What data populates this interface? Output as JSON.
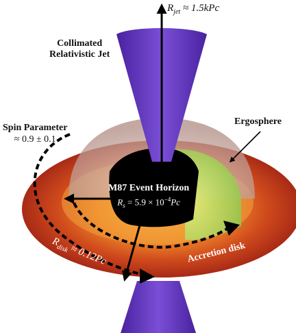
{
  "jet_label": {
    "line1": "Collimated",
    "line2": "Relativistic Jet"
  },
  "jet_radius": {
    "prefix": "R",
    "sub": "jet",
    "value": " ≈ 1.5kPc"
  },
  "spin": {
    "line1": "Spin Parameter",
    "line2": "≈ 0.9 ± 0.1"
  },
  "ergosphere": "Ergosphere",
  "horizon": {
    "title": "M87 Event Horizon",
    "rs_prefix": "R",
    "rs_sub": "s",
    "rs_value": " = 5.9 × 10",
    "rs_exp": "−4",
    "rs_unit": "Pc"
  },
  "disk_radius": {
    "prefix": "R",
    "sub": "disk",
    "value": " ≈ 0.12Pc"
  },
  "accretion": "Accretion disk",
  "colors": {
    "jet": "#6b3fc4",
    "disk_outer": "#b8321c",
    "disk_inner": "#f4a23a",
    "ergo": "#c9a8a0",
    "ergo_green": "#9ccf4a",
    "horizon": "#000000"
  }
}
